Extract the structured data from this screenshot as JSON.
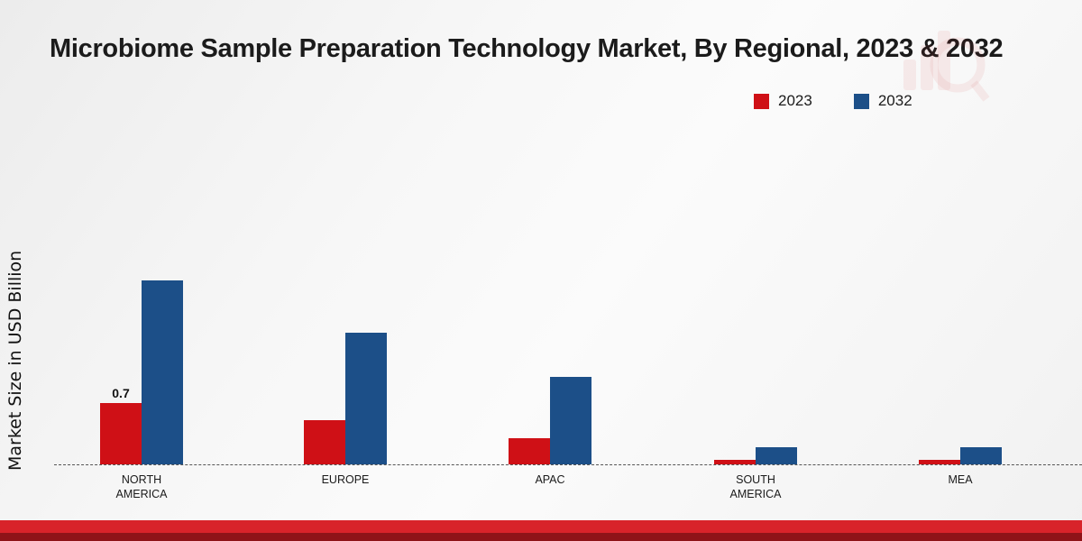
{
  "title": "Microbiome Sample Preparation Technology Market, By Regional, 2023 & 2032",
  "y_axis_label": "Market Size in USD Billion",
  "legend": {
    "items": [
      {
        "label": "2023",
        "color": "#cf1016"
      },
      {
        "label": "2032",
        "color": "#1c4f88"
      }
    ]
  },
  "chart_data": {
    "type": "bar",
    "title": "Microbiome Sample Preparation Technology Market, By Regional, 2023 & 2032",
    "categories": [
      "NORTH AMERICA",
      "EUROPE",
      "APAC",
      "SOUTH AMERICA",
      "MEA"
    ],
    "series": [
      {
        "name": "2023",
        "color": "#cf1016",
        "values": [
          0.7,
          0.5,
          0.3,
          0.05,
          0.05
        ]
      },
      {
        "name": "2032",
        "color": "#1c4f88",
        "values": [
          2.1,
          1.5,
          1.0,
          0.2,
          0.2
        ]
      }
    ],
    "annotations": [
      {
        "series": "2023",
        "category": "NORTH AMERICA",
        "text": "0.7"
      }
    ],
    "xlabel": "",
    "ylabel": "Market Size in USD Billion",
    "ylim": [
      0,
      2.5
    ],
    "grid": false,
    "legend_position": "top-right",
    "baseline_style": "dashed"
  }
}
